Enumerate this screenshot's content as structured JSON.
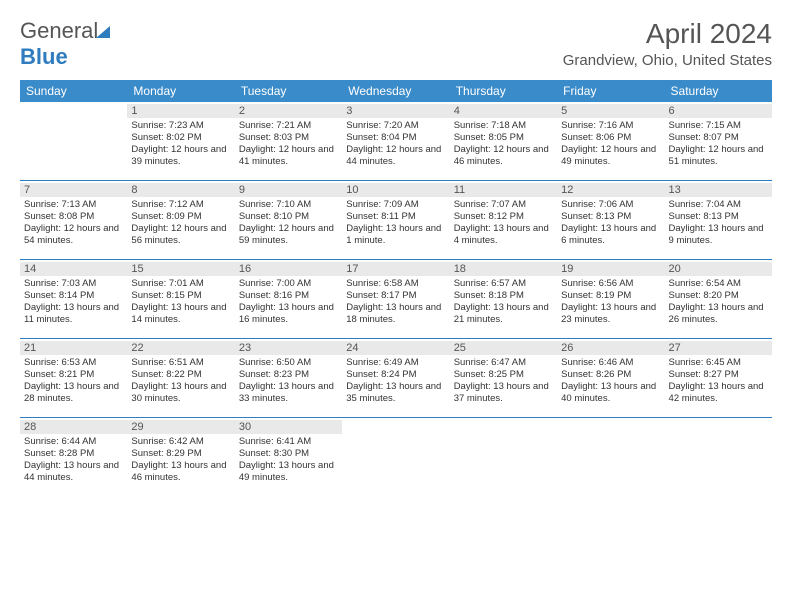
{
  "brand": {
    "part1": "General",
    "part2": "Blue"
  },
  "title": "April 2024",
  "location": "Grandview, Ohio, United States",
  "colors": {
    "header_bg": "#3a8bc9",
    "rule": "#2f7cbf",
    "daynum_bg": "#e9e9e9",
    "text": "#333333",
    "title_text": "#555555"
  },
  "weekdays": [
    "Sunday",
    "Monday",
    "Tuesday",
    "Wednesday",
    "Thursday",
    "Friday",
    "Saturday"
  ],
  "start_offset": 1,
  "days": [
    {
      "n": 1,
      "sunrise": "7:23 AM",
      "sunset": "8:02 PM",
      "daylight": "12 hours and 39 minutes."
    },
    {
      "n": 2,
      "sunrise": "7:21 AM",
      "sunset": "8:03 PM",
      "daylight": "12 hours and 41 minutes."
    },
    {
      "n": 3,
      "sunrise": "7:20 AM",
      "sunset": "8:04 PM",
      "daylight": "12 hours and 44 minutes."
    },
    {
      "n": 4,
      "sunrise": "7:18 AM",
      "sunset": "8:05 PM",
      "daylight": "12 hours and 46 minutes."
    },
    {
      "n": 5,
      "sunrise": "7:16 AM",
      "sunset": "8:06 PM",
      "daylight": "12 hours and 49 minutes."
    },
    {
      "n": 6,
      "sunrise": "7:15 AM",
      "sunset": "8:07 PM",
      "daylight": "12 hours and 51 minutes."
    },
    {
      "n": 7,
      "sunrise": "7:13 AM",
      "sunset": "8:08 PM",
      "daylight": "12 hours and 54 minutes."
    },
    {
      "n": 8,
      "sunrise": "7:12 AM",
      "sunset": "8:09 PM",
      "daylight": "12 hours and 56 minutes."
    },
    {
      "n": 9,
      "sunrise": "7:10 AM",
      "sunset": "8:10 PM",
      "daylight": "12 hours and 59 minutes."
    },
    {
      "n": 10,
      "sunrise": "7:09 AM",
      "sunset": "8:11 PM",
      "daylight": "13 hours and 1 minute."
    },
    {
      "n": 11,
      "sunrise": "7:07 AM",
      "sunset": "8:12 PM",
      "daylight": "13 hours and 4 minutes."
    },
    {
      "n": 12,
      "sunrise": "7:06 AM",
      "sunset": "8:13 PM",
      "daylight": "13 hours and 6 minutes."
    },
    {
      "n": 13,
      "sunrise": "7:04 AM",
      "sunset": "8:13 PM",
      "daylight": "13 hours and 9 minutes."
    },
    {
      "n": 14,
      "sunrise": "7:03 AM",
      "sunset": "8:14 PM",
      "daylight": "13 hours and 11 minutes."
    },
    {
      "n": 15,
      "sunrise": "7:01 AM",
      "sunset": "8:15 PM",
      "daylight": "13 hours and 14 minutes."
    },
    {
      "n": 16,
      "sunrise": "7:00 AM",
      "sunset": "8:16 PM",
      "daylight": "13 hours and 16 minutes."
    },
    {
      "n": 17,
      "sunrise": "6:58 AM",
      "sunset": "8:17 PM",
      "daylight": "13 hours and 18 minutes."
    },
    {
      "n": 18,
      "sunrise": "6:57 AM",
      "sunset": "8:18 PM",
      "daylight": "13 hours and 21 minutes."
    },
    {
      "n": 19,
      "sunrise": "6:56 AM",
      "sunset": "8:19 PM",
      "daylight": "13 hours and 23 minutes."
    },
    {
      "n": 20,
      "sunrise": "6:54 AM",
      "sunset": "8:20 PM",
      "daylight": "13 hours and 26 minutes."
    },
    {
      "n": 21,
      "sunrise": "6:53 AM",
      "sunset": "8:21 PM",
      "daylight": "13 hours and 28 minutes."
    },
    {
      "n": 22,
      "sunrise": "6:51 AM",
      "sunset": "8:22 PM",
      "daylight": "13 hours and 30 minutes."
    },
    {
      "n": 23,
      "sunrise": "6:50 AM",
      "sunset": "8:23 PM",
      "daylight": "13 hours and 33 minutes."
    },
    {
      "n": 24,
      "sunrise": "6:49 AM",
      "sunset": "8:24 PM",
      "daylight": "13 hours and 35 minutes."
    },
    {
      "n": 25,
      "sunrise": "6:47 AM",
      "sunset": "8:25 PM",
      "daylight": "13 hours and 37 minutes."
    },
    {
      "n": 26,
      "sunrise": "6:46 AM",
      "sunset": "8:26 PM",
      "daylight": "13 hours and 40 minutes."
    },
    {
      "n": 27,
      "sunrise": "6:45 AM",
      "sunset": "8:27 PM",
      "daylight": "13 hours and 42 minutes."
    },
    {
      "n": 28,
      "sunrise": "6:44 AM",
      "sunset": "8:28 PM",
      "daylight": "13 hours and 44 minutes."
    },
    {
      "n": 29,
      "sunrise": "6:42 AM",
      "sunset": "8:29 PM",
      "daylight": "13 hours and 46 minutes."
    },
    {
      "n": 30,
      "sunrise": "6:41 AM",
      "sunset": "8:30 PM",
      "daylight": "13 hours and 49 minutes."
    }
  ],
  "labels": {
    "sunrise": "Sunrise:",
    "sunset": "Sunset:",
    "daylight": "Daylight:"
  }
}
